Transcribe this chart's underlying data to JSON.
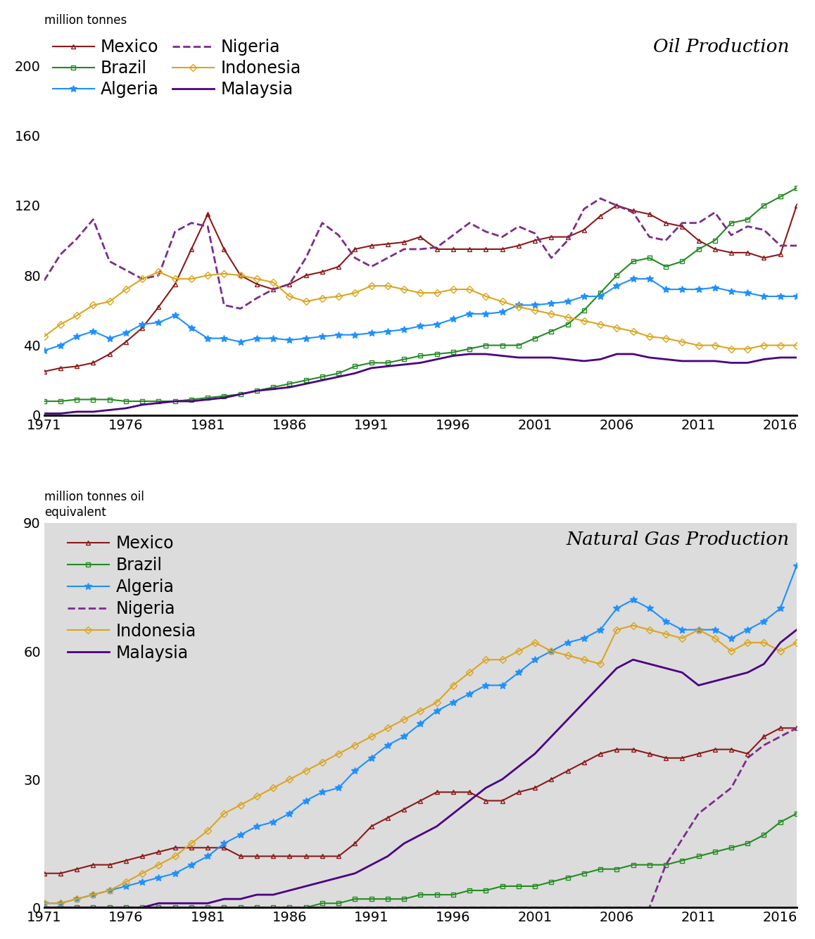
{
  "years": [
    1971,
    1972,
    1973,
    1974,
    1975,
    1976,
    1977,
    1978,
    1979,
    1980,
    1981,
    1982,
    1983,
    1984,
    1985,
    1986,
    1987,
    1988,
    1989,
    1990,
    1991,
    1992,
    1993,
    1994,
    1995,
    1996,
    1997,
    1998,
    1999,
    2000,
    2001,
    2002,
    2003,
    2004,
    2005,
    2006,
    2007,
    2008,
    2009,
    2010,
    2011,
    2012,
    2013,
    2014,
    2015,
    2016,
    2017
  ],
  "oil": {
    "Mexico": [
      25,
      27,
      28,
      30,
      35,
      42,
      50,
      62,
      75,
      95,
      115,
      95,
      80,
      75,
      72,
      75,
      80,
      82,
      85,
      95,
      97,
      98,
      99,
      102,
      95,
      95,
      95,
      95,
      95,
      97,
      100,
      102,
      102,
      106,
      114,
      120,
      117,
      115,
      110,
      108,
      100,
      95,
      93,
      93,
      90,
      92,
      120
    ],
    "Brazil": [
      8,
      8,
      9,
      9,
      9,
      8,
      8,
      8,
      8,
      9,
      10,
      11,
      12,
      14,
      16,
      18,
      20,
      22,
      24,
      28,
      30,
      30,
      32,
      34,
      35,
      36,
      38,
      40,
      40,
      40,
      44,
      48,
      52,
      60,
      70,
      80,
      88,
      90,
      85,
      88,
      95,
      100,
      110,
      112,
      120,
      125,
      130
    ],
    "Algeria": [
      37,
      40,
      45,
      48,
      44,
      47,
      52,
      53,
      57,
      50,
      44,
      44,
      42,
      44,
      44,
      43,
      44,
      45,
      46,
      46,
      47,
      48,
      49,
      51,
      52,
      55,
      58,
      58,
      59,
      63,
      63,
      64,
      65,
      68,
      68,
      74,
      78,
      78,
      72,
      72,
      72,
      73,
      71,
      70,
      68,
      68,
      68
    ],
    "Nigeria": [
      77,
      92,
      101,
      112,
      88,
      83,
      78,
      80,
      105,
      110,
      108,
      63,
      61,
      67,
      72,
      75,
      90,
      110,
      103,
      90,
      85,
      90,
      95,
      95,
      96,
      103,
      110,
      105,
      102,
      108,
      104,
      90,
      100,
      118,
      124,
      120,
      116,
      102,
      100,
      110,
      110,
      116,
      103,
      108,
      106,
      97,
      97
    ],
    "Indonesia": [
      45,
      52,
      57,
      63,
      65,
      72,
      78,
      82,
      78,
      78,
      80,
      81,
      80,
      78,
      76,
      68,
      65,
      67,
      68,
      70,
      74,
      74,
      72,
      70,
      70,
      72,
      72,
      68,
      65,
      62,
      60,
      58,
      56,
      54,
      52,
      50,
      48,
      45,
      44,
      42,
      40,
      40,
      38,
      38,
      40,
      40,
      40
    ],
    "Malaysia": [
      1,
      1,
      2,
      2,
      3,
      4,
      6,
      7,
      8,
      8,
      9,
      10,
      12,
      14,
      15,
      16,
      18,
      20,
      22,
      24,
      27,
      28,
      29,
      30,
      32,
      34,
      35,
      35,
      34,
      33,
      33,
      33,
      32,
      31,
      32,
      35,
      35,
      33,
      32,
      31,
      31,
      31,
      30,
      30,
      32,
      33,
      33
    ]
  },
  "gas": {
    "Mexico": [
      8,
      8,
      9,
      10,
      10,
      11,
      12,
      13,
      14,
      14,
      14,
      14,
      12,
      12,
      12,
      12,
      12,
      12,
      12,
      15,
      19,
      21,
      23,
      25,
      27,
      27,
      27,
      25,
      25,
      27,
      28,
      30,
      32,
      34,
      36,
      37,
      37,
      36,
      35,
      35,
      36,
      37,
      37,
      36,
      40,
      42,
      42
    ],
    "Brazil": [
      0,
      0,
      0,
      0,
      0,
      0,
      0,
      0,
      0,
      0,
      0,
      0,
      0,
      0,
      0,
      0,
      0,
      1,
      1,
      2,
      2,
      2,
      2,
      3,
      3,
      3,
      4,
      4,
      5,
      5,
      5,
      6,
      7,
      8,
      9,
      9,
      10,
      10,
      10,
      11,
      12,
      13,
      14,
      15,
      17,
      20,
      22
    ],
    "Algeria": [
      1,
      1,
      2,
      3,
      4,
      5,
      6,
      7,
      8,
      10,
      12,
      15,
      17,
      19,
      20,
      22,
      25,
      27,
      28,
      32,
      35,
      38,
      40,
      43,
      46,
      48,
      50,
      52,
      52,
      55,
      58,
      60,
      62,
      63,
      65,
      70,
      72,
      70,
      67,
      65,
      65,
      65,
      63,
      65,
      67,
      70,
      80
    ],
    "Nigeria": [
      0,
      0,
      0,
      0,
      0,
      0,
      0,
      0,
      0,
      0,
      0,
      0,
      0,
      0,
      0,
      0,
      0,
      0,
      0,
      0,
      0,
      0,
      0,
      0,
      0,
      0,
      0,
      0,
      0,
      0,
      0,
      0,
      0,
      0,
      0,
      0,
      0,
      0,
      10,
      16,
      22,
      25,
      28,
      35,
      38,
      40,
      42
    ],
    "Indonesia": [
      1,
      1,
      2,
      3,
      4,
      6,
      8,
      10,
      12,
      15,
      18,
      22,
      24,
      26,
      28,
      30,
      32,
      34,
      36,
      38,
      40,
      42,
      44,
      46,
      48,
      52,
      55,
      58,
      58,
      60,
      62,
      60,
      59,
      58,
      57,
      65,
      66,
      65,
      64,
      63,
      65,
      63,
      60,
      62,
      62,
      60,
      62
    ],
    "Malaysia": [
      0,
      0,
      0,
      0,
      0,
      0,
      0,
      1,
      1,
      1,
      1,
      2,
      2,
      3,
      3,
      4,
      5,
      6,
      7,
      8,
      10,
      12,
      15,
      17,
      19,
      22,
      25,
      28,
      30,
      33,
      36,
      40,
      44,
      48,
      52,
      56,
      58,
      57,
      56,
      55,
      52,
      53,
      54,
      55,
      57,
      62,
      65
    ]
  },
  "oil_ylim": [
    0,
    220
  ],
  "oil_yticks": [
    0,
    40,
    80,
    120,
    160,
    200
  ],
  "gas_ylim": [
    0,
    90
  ],
  "gas_yticks": [
    0,
    30,
    60,
    90
  ],
  "colors": {
    "Mexico": "#8B1A1A",
    "Brazil": "#228B22",
    "Algeria": "#1E90FF",
    "Nigeria": "#7B2D8B",
    "Indonesia": "#DAA520",
    "Malaysia": "#4B0082"
  },
  "bg_top": "#FFFFFF",
  "bg_bottom": "#DCDCDC",
  "title_oil": "Oil Production",
  "title_gas": "Natural Gas Production",
  "ylabel_oil": "million tonnes",
  "ylabel_gas": "million tonnes oil\nequivalent",
  "xticklabels": [
    1971,
    1976,
    1981,
    1986,
    1991,
    1996,
    2001,
    2006,
    2011,
    2016
  ]
}
